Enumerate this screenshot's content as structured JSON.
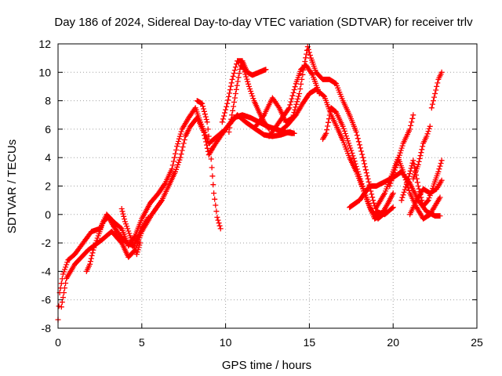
{
  "chart_data": {
    "type": "scatter",
    "title": "Day 186 of 2024, Sidereal Day-to-day VTEC variation (SDTVAR) for receiver trlv",
    "xlabel": "GPS time / hours",
    "ylabel": "SDTVAR / TECUs",
    "xlim": [
      0,
      25
    ],
    "ylim": [
      -8,
      12
    ],
    "xticks": [
      0,
      5,
      10,
      15,
      20,
      25
    ],
    "yticks": [
      -8,
      -6,
      -4,
      -2,
      0,
      2,
      4,
      6,
      8,
      10,
      12
    ],
    "grid": true,
    "legend": "none",
    "marker": "plus",
    "color": "#ff0000",
    "series": [
      {
        "values": [
          [
            0,
            -7.4
          ],
          [
            0.1,
            -5.5
          ],
          [
            0.3,
            -4.2
          ],
          [
            0.6,
            -3.2
          ],
          [
            1.0,
            -2.8
          ],
          [
            1.5,
            -2.0
          ],
          [
            2.0,
            -1.2
          ],
          [
            2.5,
            -1.0
          ],
          [
            2.9,
            0.0
          ],
          [
            3.3,
            -0.5
          ],
          [
            3.8,
            -1.0
          ],
          [
            4.2,
            -2.2
          ],
          [
            4.6,
            -1.5
          ],
          [
            5.0,
            -0.3
          ],
          [
            5.5,
            0.8
          ],
          [
            6.0,
            1.5
          ],
          [
            6.4,
            2.2
          ],
          [
            6.8,
            3.2
          ],
          [
            7.1,
            4.8
          ],
          [
            7.4,
            6.0
          ],
          [
            7.8,
            6.8
          ],
          [
            8.2,
            7.5
          ],
          [
            8.5,
            6.5
          ],
          [
            9.0,
            5.0
          ],
          [
            9.5,
            5.5
          ],
          [
            10.0,
            6.0
          ],
          [
            10.5,
            6.8
          ],
          [
            11.0,
            7.0
          ],
          [
            11.5,
            6.8
          ],
          [
            12.0,
            6.5
          ],
          [
            12.5,
            6.2
          ],
          [
            13.0,
            6.0
          ],
          [
            13.5,
            5.8
          ],
          [
            14.0,
            5.7
          ]
        ]
      },
      {
        "values": [
          [
            0.2,
            -6.5
          ],
          [
            0.5,
            -4.5
          ],
          [
            1.0,
            -3.5
          ],
          [
            1.8,
            -2.5
          ],
          [
            2.6,
            -1.8
          ],
          [
            3.2,
            -1.2
          ],
          [
            3.8,
            -2.0
          ],
          [
            4.2,
            -3.0
          ],
          [
            4.6,
            -2.5
          ],
          [
            5.0,
            -1.2
          ],
          [
            5.6,
            0.0
          ],
          [
            6.2,
            1.0
          ],
          [
            6.6,
            2.0
          ],
          [
            7.0,
            3.0
          ],
          [
            7.3,
            4.0
          ],
          [
            7.6,
            5.5
          ],
          [
            7.9,
            6.2
          ],
          [
            8.3,
            6.8
          ],
          [
            8.7,
            5.8
          ],
          [
            9.0,
            4.2
          ],
          [
            9.3,
            4.8
          ],
          [
            9.7,
            5.5
          ],
          [
            10.2,
            6.3
          ],
          [
            10.7,
            7.0
          ],
          [
            11.2,
            6.5
          ],
          [
            11.8,
            6.0
          ],
          [
            12.3,
            5.6
          ],
          [
            12.8,
            5.5
          ],
          [
            13.3,
            5.6
          ],
          [
            13.8,
            5.8
          ],
          [
            14.1,
            5.7
          ]
        ]
      },
      {
        "values": [
          [
            1.7,
            -4.0
          ],
          [
            1.9,
            -3.5
          ],
          [
            2.1,
            -2.5
          ],
          [
            2.4,
            -1.5
          ],
          [
            2.7,
            -0.5
          ],
          [
            3.0,
            -0.2
          ],
          [
            3.3,
            -0.8
          ],
          [
            3.7,
            -1.5
          ],
          [
            4.1,
            -2.0
          ],
          [
            4.5,
            -2.2
          ],
          [
            5.0,
            -1.0
          ],
          [
            5.4,
            -0.2
          ]
        ]
      },
      {
        "values": [
          [
            3.8,
            0.4
          ],
          [
            4.0,
            -0.5
          ],
          [
            4.3,
            -1.5
          ],
          [
            4.7,
            -2.8
          ],
          [
            4.9,
            -2.0
          ]
        ]
      },
      {
        "values": [
          [
            8.3,
            8.0
          ],
          [
            8.6,
            7.8
          ],
          [
            8.9,
            6.5
          ],
          [
            9.1,
            4.5
          ],
          [
            9.3,
            1.5
          ],
          [
            9.5,
            -0.2
          ],
          [
            9.7,
            -1.0
          ]
        ]
      },
      {
        "values": [
          [
            9.8,
            6.5
          ],
          [
            10.1,
            7.8
          ],
          [
            10.4,
            9.5
          ],
          [
            10.7,
            10.8
          ],
          [
            11.0,
            10.8
          ],
          [
            11.3,
            10.0
          ],
          [
            11.6,
            9.8
          ],
          [
            12.0,
            10.0
          ],
          [
            12.4,
            10.2
          ]
        ]
      },
      {
        "values": [
          [
            10.2,
            5.8
          ],
          [
            10.6,
            8.5
          ],
          [
            10.9,
            10.5
          ],
          [
            11.1,
            10.2
          ],
          [
            11.4,
            9.0
          ],
          [
            11.7,
            8.0
          ],
          [
            12.0,
            7.2
          ],
          [
            12.3,
            6.5
          ],
          [
            12.6,
            6.0
          ]
        ]
      },
      {
        "values": [
          [
            11.8,
            6.2
          ],
          [
            12.3,
            7.0
          ],
          [
            12.8,
            8.2
          ],
          [
            13.2,
            7.5
          ],
          [
            13.6,
            6.5
          ],
          [
            14.0,
            6.8
          ],
          [
            14.4,
            8.5
          ],
          [
            14.7,
            10.5
          ],
          [
            14.9,
            11.8
          ],
          [
            15.1,
            11.0
          ],
          [
            15.4,
            10.0
          ],
          [
            15.8,
            9.5
          ],
          [
            16.2,
            9.5
          ],
          [
            16.6,
            9.2
          ],
          [
            17.0,
            8.0
          ],
          [
            17.4,
            7.0
          ],
          [
            17.8,
            5.8
          ],
          [
            18.2,
            4.0
          ],
          [
            18.5,
            2.5
          ],
          [
            18.8,
            1.0
          ],
          [
            19.0,
            0.2
          ],
          [
            19.5,
            0.0
          ],
          [
            20.0,
            0.5
          ]
        ]
      },
      {
        "values": [
          [
            12.6,
            5.5
          ],
          [
            13.2,
            6.5
          ],
          [
            13.8,
            7.5
          ],
          [
            14.2,
            9.2
          ],
          [
            14.5,
            10.2
          ],
          [
            14.8,
            10.5
          ],
          [
            15.2,
            9.8
          ],
          [
            15.6,
            8.5
          ]
        ]
      },
      {
        "values": [
          [
            13.2,
            5.8
          ],
          [
            13.7,
            6.3
          ],
          [
            14.2,
            7.0
          ],
          [
            14.6,
            7.8
          ],
          [
            15.0,
            8.5
          ],
          [
            15.4,
            8.8
          ],
          [
            15.9,
            8.3
          ],
          [
            16.3,
            7.0
          ],
          [
            16.7,
            6.0
          ],
          [
            17.0,
            5.2
          ],
          [
            17.4,
            4.0
          ],
          [
            17.8,
            3.0
          ],
          [
            18.2,
            1.8
          ],
          [
            18.6,
            0.5
          ],
          [
            18.9,
            -0.3
          ],
          [
            19.3,
            0.0
          ],
          [
            19.7,
            0.8
          ],
          [
            20.0,
            1.5
          ]
        ]
      },
      {
        "values": [
          [
            15.8,
            5.3
          ],
          [
            16.0,
            5.7
          ],
          [
            16.3,
            7.5
          ],
          [
            16.6,
            7.2
          ],
          [
            17.0,
            6.2
          ],
          [
            17.5,
            4.5
          ],
          [
            17.9,
            3.0
          ],
          [
            18.3,
            1.5
          ],
          [
            18.7,
            0.3
          ],
          [
            19.1,
            -0.3
          ],
          [
            19.6,
            0.2
          ]
        ]
      },
      {
        "values": [
          [
            17.4,
            0.5
          ],
          [
            18.0,
            1.0
          ],
          [
            18.6,
            2.0
          ],
          [
            19.0,
            2.0
          ],
          [
            19.5,
            2.3
          ],
          [
            20.0,
            2.6
          ],
          [
            20.5,
            3.0
          ],
          [
            21.0,
            2.2
          ],
          [
            21.5,
            1.0
          ],
          [
            22.0,
            0.2
          ],
          [
            22.5,
            -0.1
          ],
          [
            22.8,
            -0.1
          ]
        ]
      },
      {
        "values": [
          [
            19.0,
            0.5
          ],
          [
            19.5,
            1.5
          ],
          [
            20.0,
            3.0
          ],
          [
            20.3,
            4.0
          ],
          [
            20.6,
            3.0
          ],
          [
            21.0,
            1.5
          ],
          [
            21.4,
            0.5
          ],
          [
            21.8,
            -0.3
          ],
          [
            22.2,
            0.0
          ],
          [
            22.6,
            0.8
          ],
          [
            22.8,
            1.2
          ]
        ]
      },
      {
        "values": [
          [
            19.8,
            2.0
          ],
          [
            20.2,
            3.5
          ],
          [
            20.6,
            5.0
          ],
          [
            21.0,
            6.0
          ],
          [
            21.2,
            7.0
          ]
        ]
      },
      {
        "values": [
          [
            20.5,
            1.0
          ],
          [
            20.9,
            2.5
          ],
          [
            21.2,
            3.8
          ],
          [
            21.5,
            2.0
          ],
          [
            21.8,
            0.6
          ],
          [
            22.1,
            1.0
          ],
          [
            22.4,
            2.0
          ],
          [
            22.7,
            3.0
          ],
          [
            22.9,
            3.8
          ]
        ]
      },
      {
        "values": [
          [
            21.0,
            0.0
          ],
          [
            21.4,
            1.0
          ],
          [
            21.8,
            1.8
          ],
          [
            22.2,
            1.5
          ],
          [
            22.6,
            1.8
          ],
          [
            22.9,
            2.4
          ]
        ]
      },
      {
        "values": [
          [
            21.2,
            2.5
          ],
          [
            21.5,
            3.5
          ],
          [
            21.8,
            5.0
          ],
          [
            22.0,
            5.5
          ],
          [
            22.2,
            6.2
          ]
        ]
      },
      {
        "values": [
          [
            22.3,
            7.5
          ],
          [
            22.5,
            8.5
          ],
          [
            22.7,
            9.5
          ],
          [
            22.9,
            10.0
          ]
        ]
      }
    ]
  }
}
